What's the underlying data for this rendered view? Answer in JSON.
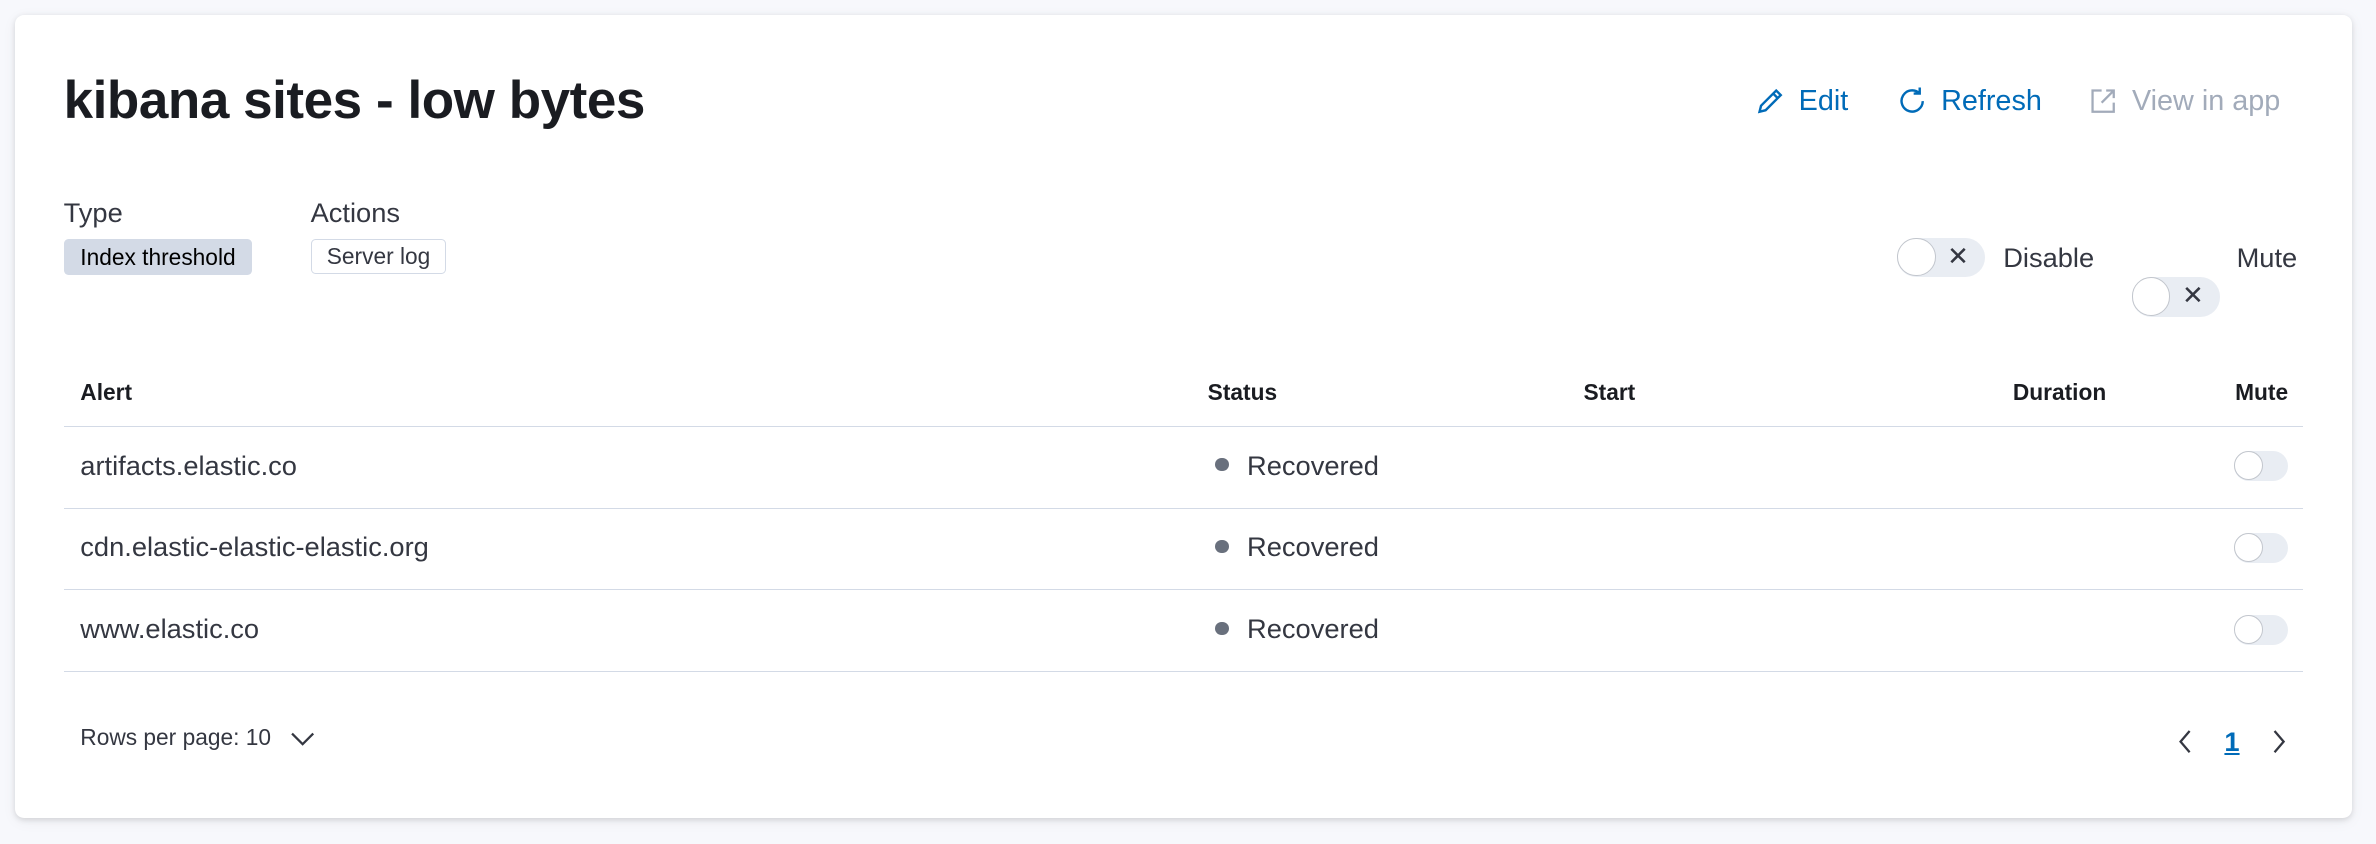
{
  "header": {
    "title": "kibana sites - low bytes",
    "edit_label": "Edit",
    "refresh_label": "Refresh",
    "view_in_app_label": "View in app"
  },
  "meta": {
    "type_label": "Type",
    "type_value": "Index threshold",
    "actions_label": "Actions",
    "actions_value": "Server log"
  },
  "toggles": {
    "disable_label": "Disable",
    "disable_on": false,
    "mute_label": "Mute",
    "mute_on": false
  },
  "table": {
    "columns": [
      "Alert",
      "Status",
      "Start",
      "Duration",
      "Mute"
    ],
    "rows": [
      {
        "alert": "artifacts.elastic.co",
        "status": "Recovered",
        "start": "",
        "duration": "",
        "muted": false
      },
      {
        "alert": "cdn.elastic-elastic-elastic.org",
        "status": "Recovered",
        "start": "",
        "duration": "",
        "muted": false
      },
      {
        "alert": "www.elastic.co",
        "status": "Recovered",
        "start": "",
        "duration": "",
        "muted": false
      }
    ]
  },
  "pagination": {
    "rows_per_page_label": "Rows per page: 10",
    "current_page": "1"
  },
  "colors": {
    "accent": "#006bb8",
    "status_recovered": "#69707d",
    "disabled": "#a2abba"
  }
}
